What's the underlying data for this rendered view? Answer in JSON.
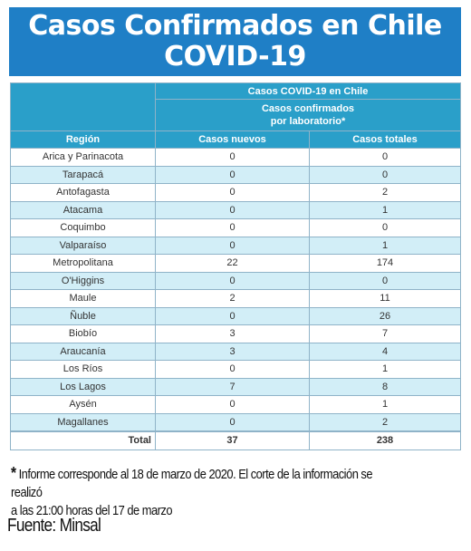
{
  "title_line1": "Casos Confirmados en Chile",
  "title_line2": "COVID-19",
  "table": {
    "group_header": "Casos COVID-19 en Chile",
    "sub_header_line1": "Casos confirmados",
    "sub_header_line2": "por laboratorio*",
    "col_region": "Región",
    "col_new": "Casos nuevos",
    "col_total": "Casos totales",
    "rows": [
      {
        "region": "Arica y Parinacota",
        "new": "0",
        "total": "0"
      },
      {
        "region": "Tarapacá",
        "new": "0",
        "total": "0"
      },
      {
        "region": "Antofagasta",
        "new": "0",
        "total": "2"
      },
      {
        "region": "Atacama",
        "new": "0",
        "total": "1"
      },
      {
        "region": "Coquimbo",
        "new": "0",
        "total": "0"
      },
      {
        "region": "Valparaíso",
        "new": "0",
        "total": "1"
      },
      {
        "region": "Metropolitana",
        "new": "22",
        "total": "174"
      },
      {
        "region": "O'Higgins",
        "new": "0",
        "total": "0"
      },
      {
        "region": "Maule",
        "new": "2",
        "total": "11"
      },
      {
        "region": "Ñuble",
        "new": "0",
        "total": "26"
      },
      {
        "region": "Biobío",
        "new": "3",
        "total": "7"
      },
      {
        "region": "Araucanía",
        "new": "3",
        "total": "4"
      },
      {
        "region": "Los Ríos",
        "new": "0",
        "total": "1"
      },
      {
        "region": "Los Lagos",
        "new": "7",
        "total": "8"
      },
      {
        "region": "Aysén",
        "new": "0",
        "total": "1"
      },
      {
        "region": "Magallanes",
        "new": "0",
        "total": "2"
      }
    ],
    "total_label": "Total",
    "total_new": "37",
    "total_total": "238"
  },
  "note_star": "*",
  "note_line1": "Informe corresponde al 18 de marzo de 2020. El corte de la información se realizó",
  "note_line2": "a las 21:00 horas del 17 de marzo",
  "source": "Fuente: Minsal",
  "colors": {
    "banner": "#1f7fc6",
    "header": "#2a9fc9",
    "stripe": "#d2eef7"
  }
}
